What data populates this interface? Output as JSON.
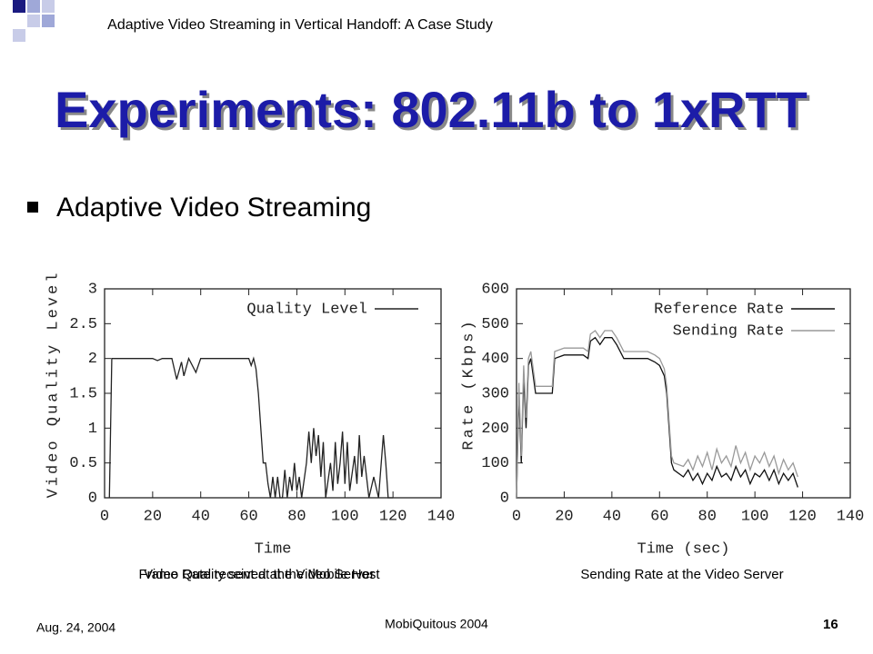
{
  "header": "Adaptive Video Streaming in Vertical Handoff: A Case Study",
  "title": "Experiments: 802.11b to 1xRTT",
  "bullet": "Adaptive Video Streaming",
  "footer": {
    "date": "Aug. 24,  2004",
    "conference": "MobiQuitous 2004",
    "page": "16"
  },
  "chart_data": [
    {
      "type": "line",
      "xlabel": "Time",
      "ylabel": "Video Quality Level",
      "captions": [
        "Frame Rate received at the Mobile Host",
        "Video Quality sent at the Video Server"
      ],
      "xlim": [
        0,
        140
      ],
      "ylim": [
        0,
        3
      ],
      "xticks": [
        0,
        20,
        40,
        60,
        80,
        100,
        120,
        140
      ],
      "yticks": [
        0,
        0.5,
        1,
        1.5,
        2,
        2.5,
        3
      ],
      "x": [
        2,
        3,
        10,
        20,
        22,
        24,
        28,
        30,
        32,
        33,
        35,
        38,
        40,
        50,
        60,
        61,
        62,
        63,
        64,
        65,
        66,
        67,
        68,
        69,
        70,
        71,
        72,
        73,
        74,
        75,
        76,
        77,
        78,
        79,
        80,
        81,
        82,
        84,
        85,
        86,
        87,
        88,
        89,
        90,
        91,
        92,
        94,
        95,
        96,
        97,
        98,
        99,
        100,
        101,
        102,
        104,
        105,
        106,
        107,
        108,
        110,
        112,
        114,
        116,
        117,
        118,
        120
      ],
      "series": [
        {
          "name": "Quality Level",
          "color": "#222222",
          "values": [
            0,
            2,
            2,
            2,
            1.97,
            2,
            2,
            1.7,
            1.95,
            1.75,
            2,
            1.8,
            2,
            2,
            2,
            1.9,
            2,
            1.85,
            1.5,
            1.0,
            0.5,
            0.5,
            0.2,
            0,
            0.3,
            0,
            0.3,
            0,
            0,
            0.4,
            0,
            0.3,
            0.1,
            0.5,
            0.1,
            0.3,
            0,
            0.5,
            0.95,
            0.5,
            1.0,
            0.6,
            0.9,
            0.3,
            0.8,
            0,
            0.5,
            0.1,
            0.8,
            0.2,
            0.5,
            0.95,
            0.2,
            0.8,
            0.1,
            0.6,
            0.2,
            0.9,
            0.3,
            0.6,
            0,
            0.3,
            0,
            0.9,
            0.5,
            0,
            0
          ]
        }
      ]
    },
    {
      "type": "line",
      "xlabel": "Time (sec)",
      "ylabel": "Rate (Kbps)",
      "captions": [
        "Sending Rate at the Video Server"
      ],
      "xlim": [
        0,
        140
      ],
      "ylim": [
        0,
        600
      ],
      "xticks": [
        0,
        20,
        40,
        60,
        80,
        100,
        120,
        140
      ],
      "yticks": [
        0,
        100,
        200,
        300,
        400,
        500,
        600
      ],
      "x": [
        0,
        1,
        2,
        3,
        4,
        5,
        6,
        8,
        10,
        12,
        15,
        16,
        20,
        25,
        28,
        30,
        31,
        33,
        35,
        37,
        40,
        42,
        45,
        50,
        55,
        58,
        60,
        62,
        63,
        64,
        65,
        66,
        70,
        72,
        74,
        76,
        78,
        80,
        82,
        84,
        86,
        88,
        90,
        92,
        94,
        96,
        98,
        100,
        102,
        104,
        106,
        108,
        110,
        112,
        114,
        116,
        118
      ],
      "series": [
        {
          "name": "Reference Rate",
          "color": "#111111",
          "values": [
            0,
            300,
            100,
            350,
            200,
            380,
            400,
            300,
            300,
            300,
            300,
            400,
            410,
            410,
            410,
            400,
            450,
            460,
            440,
            460,
            460,
            440,
            400,
            400,
            400,
            390,
            380,
            350,
            300,
            200,
            100,
            80,
            60,
            80,
            50,
            70,
            40,
            70,
            50,
            90,
            60,
            70,
            50,
            90,
            60,
            80,
            40,
            70,
            60,
            80,
            50,
            80,
            40,
            70,
            50,
            70,
            30
          ]
        },
        {
          "name": "Sending Rate",
          "color": "#999999",
          "values": [
            0,
            330,
            120,
            380,
            230,
            400,
            420,
            320,
            320,
            320,
            320,
            420,
            430,
            430,
            430,
            420,
            470,
            480,
            460,
            480,
            480,
            460,
            420,
            420,
            420,
            410,
            400,
            370,
            320,
            220,
            120,
            100,
            90,
            110,
            80,
            120,
            90,
            130,
            80,
            140,
            100,
            120,
            90,
            150,
            100,
            130,
            80,
            120,
            100,
            130,
            90,
            120,
            70,
            110,
            80,
            100,
            60
          ]
        }
      ]
    }
  ]
}
